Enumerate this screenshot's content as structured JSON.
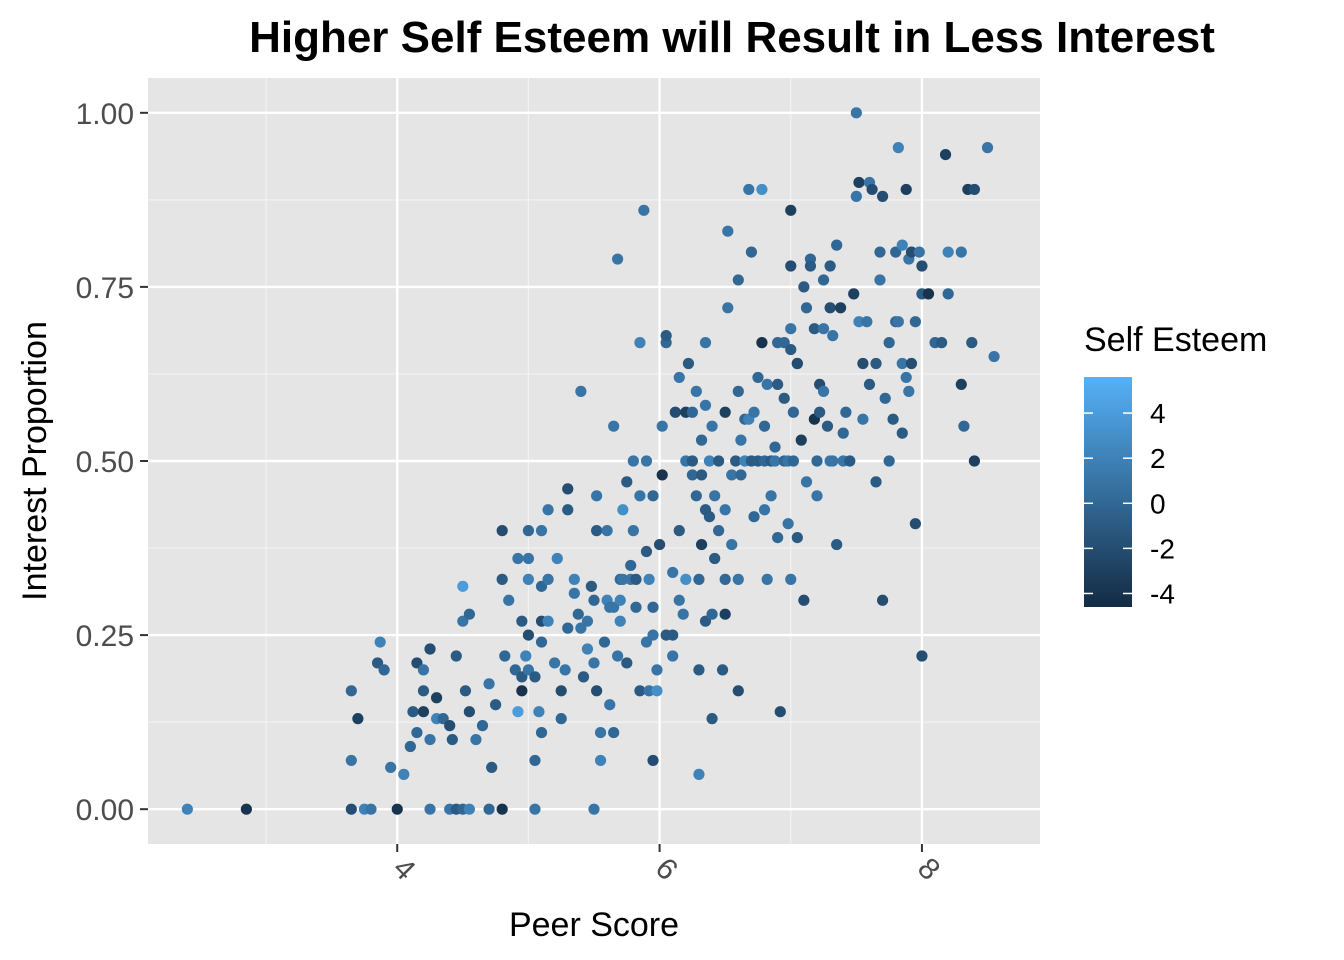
{
  "chart_data": {
    "type": "scatter",
    "title": "Higher Self Esteem will Result in Less Interest",
    "xlabel": "Peer Score",
    "ylabel": "Interest Proportion",
    "xlim": [
      2.1,
      8.9
    ],
    "ylim": [
      -0.05,
      1.05
    ],
    "x_ticks": [
      4,
      6,
      8
    ],
    "x_tick_labels": [
      "4",
      "6",
      "8"
    ],
    "x_minor_ticks": [
      3,
      5,
      7
    ],
    "y_ticks": [
      0,
      0.25,
      0.5,
      0.75,
      1.0
    ],
    "y_tick_labels": [
      "0.00",
      "0.25",
      "0.50",
      "0.75",
      "1.00"
    ],
    "grid": true,
    "panel_background": "#e5e5e5",
    "legend": {
      "title": "Self Esteem",
      "placement": "right",
      "range": [
        -4.6,
        5.6
      ],
      "breaks": [
        4,
        2,
        0,
        -2,
        -4
      ],
      "labels": [
        "4",
        "2",
        "0",
        "-2",
        "-4"
      ],
      "low_color": "#132b43",
      "high_color": "#56b1f7"
    },
    "points": [
      [
        2.4,
        0,
        2
      ],
      [
        2.85,
        0,
        -4
      ],
      [
        3.65,
        0,
        -2
      ],
      [
        3.75,
        0,
        2
      ],
      [
        3.8,
        0,
        1
      ],
      [
        4,
        0,
        -4
      ],
      [
        4.25,
        0,
        1
      ],
      [
        4.4,
        0,
        1
      ],
      [
        4.45,
        0,
        -1
      ],
      [
        4.5,
        0,
        0
      ],
      [
        4.55,
        0,
        2
      ],
      [
        4.7,
        0,
        0
      ],
      [
        4.8,
        0,
        -4
      ],
      [
        5.05,
        0,
        1
      ],
      [
        5.5,
        0,
        1
      ],
      [
        3.65,
        0.07,
        1
      ],
      [
        3.65,
        0.17,
        0
      ],
      [
        3.7,
        0.13,
        -3
      ],
      [
        3.85,
        0.21,
        -1
      ],
      [
        3.87,
        0.24,
        2
      ],
      [
        3.9,
        0.2,
        0
      ],
      [
        3.95,
        0.06,
        1
      ],
      [
        4.05,
        0.05,
        2
      ],
      [
        4.1,
        0.09,
        0
      ],
      [
        4.12,
        0.14,
        -1
      ],
      [
        4.15,
        0.11,
        0
      ],
      [
        4.15,
        0.21,
        -2
      ],
      [
        4.2,
        0.17,
        -1
      ],
      [
        4.2,
        0.2,
        1
      ],
      [
        4.2,
        0.14,
        -3
      ],
      [
        4.25,
        0.23,
        -2
      ],
      [
        4.25,
        0.1,
        1
      ],
      [
        4.3,
        0.13,
        2
      ],
      [
        4.3,
        0.16,
        -3
      ],
      [
        4.35,
        0.13,
        0
      ],
      [
        4.4,
        0.12,
        -2
      ],
      [
        4.42,
        0.1,
        -1
      ],
      [
        4.45,
        0.22,
        -1
      ],
      [
        4.5,
        0.32,
        4
      ],
      [
        4.5,
        0.27,
        1
      ],
      [
        4.52,
        0.17,
        -1
      ],
      [
        4.55,
        0.28,
        0
      ],
      [
        4.55,
        0.14,
        -2
      ],
      [
        4.6,
        0.1,
        1
      ],
      [
        4.65,
        0.12,
        0
      ],
      [
        4.7,
        0.18,
        1
      ],
      [
        4.72,
        0.06,
        -1
      ],
      [
        4.75,
        0.15,
        -1
      ],
      [
        4.8,
        0.33,
        -1
      ],
      [
        4.8,
        0.4,
        -2
      ],
      [
        4.82,
        0.22,
        0
      ],
      [
        4.85,
        0.3,
        1
      ],
      [
        4.9,
        0.2,
        0
      ],
      [
        4.92,
        0.14,
        4
      ],
      [
        4.92,
        0.36,
        1
      ],
      [
        4.95,
        0.27,
        -1
      ],
      [
        4.95,
        0.19,
        -1
      ],
      [
        4.95,
        0.17,
        -4
      ],
      [
        4.98,
        0.22,
        2
      ],
      [
        5,
        0.33,
        2
      ],
      [
        5,
        0.36,
        1
      ],
      [
        5,
        0.25,
        -2
      ],
      [
        5,
        0.2,
        1
      ],
      [
        5,
        0.4,
        0
      ],
      [
        5.05,
        0.19,
        -1
      ],
      [
        5.05,
        0.07,
        0
      ],
      [
        5.08,
        0.14,
        2
      ],
      [
        5.1,
        0.4,
        1
      ],
      [
        5.1,
        0.32,
        0
      ],
      [
        5.1,
        0.27,
        -2
      ],
      [
        5.1,
        0.24,
        0
      ],
      [
        5.1,
        0.11,
        0
      ],
      [
        5.15,
        0.33,
        1
      ],
      [
        5.15,
        0.27,
        2
      ],
      [
        5.15,
        0.43,
        1
      ],
      [
        5.2,
        0.21,
        1
      ],
      [
        5.22,
        0.36,
        2
      ],
      [
        5.25,
        0.17,
        -2
      ],
      [
        5.25,
        0.13,
        0
      ],
      [
        5.28,
        0.2,
        1
      ],
      [
        5.3,
        0.43,
        -1
      ],
      [
        5.3,
        0.26,
        0
      ],
      [
        5.3,
        0.46,
        -2
      ],
      [
        5.35,
        0.31,
        1
      ],
      [
        5.35,
        0.33,
        2
      ],
      [
        5.38,
        0.28,
        0
      ],
      [
        5.4,
        0.26,
        1
      ],
      [
        5.4,
        0.6,
        1
      ],
      [
        5.42,
        0.19,
        -1
      ],
      [
        5.45,
        0.23,
        2
      ],
      [
        5.45,
        0.27,
        1
      ],
      [
        5.48,
        0.32,
        -1
      ],
      [
        5.5,
        0.3,
        0
      ],
      [
        5.5,
        0.21,
        1
      ],
      [
        5.52,
        0.45,
        1
      ],
      [
        5.52,
        0.4,
        -1
      ],
      [
        5.52,
        0.17,
        -2
      ],
      [
        5.55,
        0.11,
        1
      ],
      [
        5.55,
        0.07,
        2
      ],
      [
        5.58,
        0.24,
        0
      ],
      [
        5.6,
        0.3,
        2
      ],
      [
        5.6,
        0.4,
        1
      ],
      [
        5.62,
        0.15,
        1
      ],
      [
        5.62,
        0.29,
        1
      ],
      [
        5.65,
        0.29,
        1
      ],
      [
        5.65,
        0.11,
        0
      ],
      [
        5.65,
        0.55,
        1
      ],
      [
        5.68,
        0.22,
        1
      ],
      [
        5.68,
        0.79,
        1
      ],
      [
        5.7,
        0.33,
        0
      ],
      [
        5.7,
        0.3,
        2
      ],
      [
        5.7,
        0.27,
        2
      ],
      [
        5.72,
        0.43,
        3
      ],
      [
        5.72,
        0.33,
        1
      ],
      [
        5.75,
        0.21,
        -1
      ],
      [
        5.75,
        0.47,
        -1
      ],
      [
        5.78,
        0.33,
        1
      ],
      [
        5.78,
        0.35,
        0
      ],
      [
        5.8,
        0.5,
        1
      ],
      [
        5.8,
        0.4,
        1
      ],
      [
        5.82,
        0.29,
        0
      ],
      [
        5.82,
        0.33,
        -1
      ],
      [
        5.85,
        0.17,
        -1
      ],
      [
        5.85,
        0.45,
        1
      ],
      [
        5.85,
        0.67,
        2
      ],
      [
        5.88,
        0.86,
        1
      ],
      [
        5.9,
        0.5,
        1
      ],
      [
        5.9,
        0.37,
        -1
      ],
      [
        5.9,
        0.24,
        1
      ],
      [
        5.92,
        0.33,
        2
      ],
      [
        5.92,
        0.17,
        1
      ],
      [
        5.95,
        0.45,
        0
      ],
      [
        5.95,
        0.25,
        1
      ],
      [
        5.95,
        0.29,
        0
      ],
      [
        5.95,
        0.07,
        -2
      ],
      [
        5.98,
        0.2,
        1
      ],
      [
        5.98,
        0.17,
        3
      ],
      [
        6,
        0.38,
        -2
      ],
      [
        6.02,
        0.48,
        -4
      ],
      [
        6.02,
        0.55,
        1
      ],
      [
        6.05,
        0.67,
        0
      ],
      [
        6.05,
        0.68,
        -1
      ],
      [
        6.05,
        0.25,
        -1
      ],
      [
        6.1,
        0.34,
        1
      ],
      [
        6.1,
        0.25,
        -1
      ],
      [
        6.1,
        0.22,
        1
      ],
      [
        6.12,
        0.57,
        -2
      ],
      [
        6.15,
        0.62,
        1
      ],
      [
        6.15,
        0.3,
        1
      ],
      [
        6.15,
        0.4,
        -1
      ],
      [
        6.18,
        0.28,
        1
      ],
      [
        6.2,
        0.57,
        -3
      ],
      [
        6.2,
        0.33,
        3
      ],
      [
        6.2,
        0.5,
        1
      ],
      [
        6.22,
        0.64,
        -1
      ],
      [
        6.25,
        0.48,
        0
      ],
      [
        6.25,
        0.57,
        0
      ],
      [
        6.25,
        0.5,
        -1
      ],
      [
        6.28,
        0.45,
        0
      ],
      [
        6.28,
        0.6,
        1
      ],
      [
        6.3,
        0.33,
        0
      ],
      [
        6.3,
        0.2,
        -1
      ],
      [
        6.3,
        0.05,
        2
      ],
      [
        6.32,
        0.48,
        -1
      ],
      [
        6.32,
        0.53,
        0
      ],
      [
        6.32,
        0.38,
        -3
      ],
      [
        6.35,
        0.43,
        -1
      ],
      [
        6.35,
        0.27,
        -1
      ],
      [
        6.35,
        0.67,
        1
      ],
      [
        6.35,
        0.58,
        1
      ],
      [
        6.38,
        0.42,
        -1
      ],
      [
        6.38,
        0.5,
        2
      ],
      [
        6.4,
        0.55,
        1
      ],
      [
        6.4,
        0.28,
        0
      ],
      [
        6.4,
        0.13,
        -1
      ],
      [
        6.42,
        0.45,
        1
      ],
      [
        6.42,
        0.36,
        -1
      ],
      [
        6.45,
        0.5,
        -1
      ],
      [
        6.45,
        0.4,
        0
      ],
      [
        6.48,
        0.2,
        -1
      ],
      [
        6.5,
        0.33,
        0
      ],
      [
        6.5,
        0.28,
        -3
      ],
      [
        6.5,
        0.43,
        1
      ],
      [
        6.5,
        0.57,
        -3
      ],
      [
        6.52,
        0.72,
        1
      ],
      [
        6.52,
        0.83,
        1
      ],
      [
        6.55,
        0.48,
        1
      ],
      [
        6.55,
        0.38,
        1
      ],
      [
        6.58,
        0.5,
        -1
      ],
      [
        6.6,
        0.6,
        0
      ],
      [
        6.6,
        0.33,
        1
      ],
      [
        6.6,
        0.76,
        0
      ],
      [
        6.6,
        0.17,
        -2
      ],
      [
        6.62,
        0.48,
        0
      ],
      [
        6.62,
        0.53,
        1
      ],
      [
        6.65,
        0.56,
        0
      ],
      [
        6.65,
        0.5,
        2
      ],
      [
        6.68,
        0.89,
        1
      ],
      [
        6.68,
        0.56,
        2
      ],
      [
        6.7,
        0.5,
        -1
      ],
      [
        6.7,
        0.8,
        0
      ],
      [
        6.72,
        0.42,
        0
      ],
      [
        6.72,
        0.57,
        1
      ],
      [
        6.75,
        0.62,
        0
      ],
      [
        6.75,
        0.5,
        -1
      ],
      [
        6.78,
        0.67,
        -4
      ],
      [
        6.78,
        0.89,
        3
      ],
      [
        6.8,
        0.5,
        0
      ],
      [
        6.8,
        0.55,
        0
      ],
      [
        6.8,
        0.43,
        1
      ],
      [
        6.82,
        0.61,
        1
      ],
      [
        6.82,
        0.33,
        1
      ],
      [
        6.85,
        0.5,
        -1
      ],
      [
        6.85,
        0.45,
        1
      ],
      [
        6.88,
        0.5,
        1
      ],
      [
        6.88,
        0.52,
        0
      ],
      [
        6.9,
        0.61,
        -1
      ],
      [
        6.9,
        0.67,
        0
      ],
      [
        6.9,
        0.39,
        0
      ],
      [
        6.92,
        0.14,
        -2
      ],
      [
        6.95,
        0.5,
        0
      ],
      [
        6.95,
        0.59,
        -1
      ],
      [
        6.95,
        0.67,
        0
      ],
      [
        6.98,
        0.5,
        1
      ],
      [
        6.98,
        0.41,
        1
      ],
      [
        7,
        0.78,
        -2
      ],
      [
        7,
        0.86,
        -3
      ],
      [
        7,
        0.69,
        1
      ],
      [
        7,
        0.66,
        -1
      ],
      [
        7,
        0.33,
        1
      ],
      [
        7.02,
        0.57,
        0
      ],
      [
        7.02,
        0.5,
        0
      ],
      [
        7.05,
        0.64,
        0
      ],
      [
        7.05,
        0.64,
        -2
      ],
      [
        7.05,
        0.39,
        -1
      ],
      [
        7.08,
        0.53,
        -3
      ],
      [
        7.1,
        0.3,
        -2
      ],
      [
        7.1,
        0.75,
        -1
      ],
      [
        7.12,
        0.72,
        0
      ],
      [
        7.12,
        0.47,
        1
      ],
      [
        7.15,
        0.79,
        0
      ],
      [
        7.15,
        0.78,
        -1
      ],
      [
        7.18,
        0.69,
        -1
      ],
      [
        7.18,
        0.56,
        -4
      ],
      [
        7.2,
        0.5,
        0
      ],
      [
        7.2,
        0.45,
        1
      ],
      [
        7.22,
        0.61,
        -2
      ],
      [
        7.22,
        0.57,
        -1
      ],
      [
        7.25,
        0.76,
        0
      ],
      [
        7.25,
        0.69,
        1
      ],
      [
        7.25,
        0.6,
        1
      ],
      [
        7.28,
        0.55,
        -1
      ],
      [
        7.3,
        0.5,
        1
      ],
      [
        7.3,
        0.72,
        -2
      ],
      [
        7.3,
        0.78,
        -1
      ],
      [
        7.32,
        0.68,
        1
      ],
      [
        7.32,
        0.5,
        1
      ],
      [
        7.35,
        0.81,
        0
      ],
      [
        7.35,
        0.38,
        -1
      ],
      [
        7.38,
        0.72,
        -3
      ],
      [
        7.4,
        0.5,
        1
      ],
      [
        7.4,
        0.54,
        0
      ],
      [
        7.42,
        0.57,
        0
      ],
      [
        7.45,
        0.5,
        -1
      ],
      [
        7.48,
        0.74,
        -3
      ],
      [
        7.5,
        1,
        1
      ],
      [
        7.5,
        0.88,
        1
      ],
      [
        7.52,
        0.9,
        -3
      ],
      [
        7.52,
        0.7,
        2
      ],
      [
        7.55,
        0.64,
        -2
      ],
      [
        7.55,
        0.56,
        1
      ],
      [
        7.58,
        0.7,
        1
      ],
      [
        7.6,
        0.61,
        -1
      ],
      [
        7.6,
        0.9,
        1
      ],
      [
        7.62,
        0.89,
        -2
      ],
      [
        7.65,
        0.47,
        -1
      ],
      [
        7.65,
        0.64,
        -1
      ],
      [
        7.68,
        0.8,
        0
      ],
      [
        7.68,
        0.76,
        1
      ],
      [
        7.7,
        0.88,
        -2
      ],
      [
        7.7,
        0.3,
        -2
      ],
      [
        7.72,
        0.59,
        0
      ],
      [
        7.75,
        0.67,
        0
      ],
      [
        7.75,
        0.5,
        0
      ],
      [
        7.78,
        0.56,
        -1
      ],
      [
        7.8,
        0.8,
        0
      ],
      [
        7.8,
        0.7,
        0
      ],
      [
        7.82,
        0.7,
        1
      ],
      [
        7.82,
        0.95,
        2
      ],
      [
        7.85,
        0.54,
        -1
      ],
      [
        7.85,
        0.81,
        2
      ],
      [
        7.85,
        0.64,
        1
      ],
      [
        7.88,
        0.89,
        -3
      ],
      [
        7.88,
        0.62,
        1
      ],
      [
        7.9,
        0.6,
        1
      ],
      [
        7.9,
        0.79,
        1
      ],
      [
        7.92,
        0.8,
        -2
      ],
      [
        7.92,
        0.64,
        -2
      ],
      [
        7.95,
        0.41,
        -2
      ],
      [
        7.95,
        0.7,
        0
      ],
      [
        7.98,
        0.8,
        1
      ],
      [
        8,
        0.78,
        -2
      ],
      [
        8,
        0.74,
        -1
      ],
      [
        8,
        0.22,
        -2
      ],
      [
        8.05,
        0.74,
        -4
      ],
      [
        8.1,
        0.67,
        0
      ],
      [
        8.15,
        0.67,
        -1
      ],
      [
        8.18,
        0.94,
        -3
      ],
      [
        8.2,
        0.74,
        0
      ],
      [
        8.2,
        0.8,
        2
      ],
      [
        8.3,
        0.8,
        1
      ],
      [
        8.3,
        0.61,
        -3
      ],
      [
        8.32,
        0.55,
        0
      ],
      [
        8.35,
        0.89,
        -3
      ],
      [
        8.38,
        0.67,
        -1
      ],
      [
        8.4,
        0.89,
        -2
      ],
      [
        8.4,
        0.5,
        -3
      ],
      [
        8.5,
        0.95,
        1
      ],
      [
        8.55,
        0.65,
        1
      ]
    ]
  }
}
